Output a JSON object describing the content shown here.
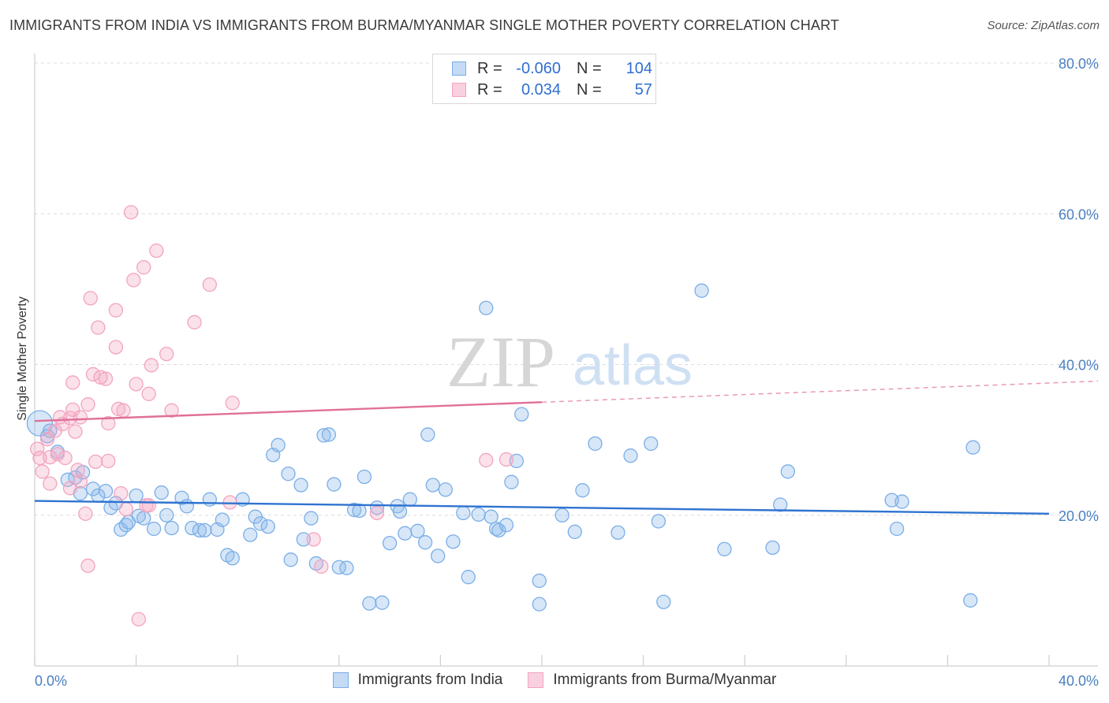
{
  "title": "IMMIGRANTS FROM INDIA VS IMMIGRANTS FROM BURMA/MYANMAR SINGLE MOTHER POVERTY CORRELATION CHART",
  "source": "Source: ZipAtlas.com",
  "watermark": {
    "zip": "ZIP",
    "atlas": "atlas"
  },
  "legend": {
    "rows": [
      {
        "r_label": "R =",
        "r_value": "-0.060",
        "n_label": "N =",
        "n_value": "104"
      },
      {
        "r_label": "R =",
        "r_value": "0.034",
        "n_label": "N =",
        "n_value": "57"
      }
    ]
  },
  "chart_data": {
    "type": "scatter",
    "title": "IMMIGRANTS FROM INDIA VS IMMIGRANTS FROM BURMA/MYANMAR SINGLE MOTHER POVERTY CORRELATION CHART",
    "xlabel": "",
    "ylabel": "Single Mother Poverty",
    "xlim": [
      0,
      40
    ],
    "ylim": [
      0,
      80
    ],
    "x_ticks": [
      "0.0%",
      "40.0%"
    ],
    "y_ticks": [
      "20.0%",
      "40.0%",
      "60.0%",
      "80.0%"
    ],
    "y_tick_values": [
      20,
      40,
      60,
      80
    ],
    "grid": true,
    "legend_position": "bottom",
    "series": [
      {
        "name": "Immigrants from India",
        "color": "#7aaee8",
        "line_color": "#2f73d0",
        "trend": {
          "x0": 0,
          "y0": 21.9,
          "x1": 40,
          "y1": 20.2
        },
        "points": [
          [
            0.2,
            32.2
          ],
          [
            0.5,
            30.5
          ],
          [
            0.6,
            31.2
          ],
          [
            0.9,
            28.4
          ],
          [
            1.3,
            24.7
          ],
          [
            1.6,
            25.0
          ],
          [
            1.9,
            25.7
          ],
          [
            1.8,
            22.9
          ],
          [
            2.3,
            23.5
          ],
          [
            2.5,
            22.6
          ],
          [
            2.8,
            23.2
          ],
          [
            3.0,
            21.0
          ],
          [
            3.2,
            21.6
          ],
          [
            3.4,
            18.1
          ],
          [
            3.6,
            18.7
          ],
          [
            3.7,
            19.1
          ],
          [
            4.0,
            22.6
          ],
          [
            4.1,
            19.9
          ],
          [
            4.3,
            19.6
          ],
          [
            4.7,
            18.2
          ],
          [
            5.0,
            23.0
          ],
          [
            5.2,
            20.0
          ],
          [
            5.4,
            18.3
          ],
          [
            5.8,
            22.3
          ],
          [
            6.0,
            21.2
          ],
          [
            6.2,
            18.3
          ],
          [
            6.5,
            18.0
          ],
          [
            6.7,
            18.0
          ],
          [
            6.9,
            22.1
          ],
          [
            7.2,
            18.1
          ],
          [
            7.4,
            19.4
          ],
          [
            7.6,
            14.7
          ],
          [
            7.8,
            14.3
          ],
          [
            8.2,
            22.1
          ],
          [
            8.5,
            17.4
          ],
          [
            8.7,
            19.8
          ],
          [
            8.9,
            18.9
          ],
          [
            9.2,
            18.5
          ],
          [
            9.4,
            28.0
          ],
          [
            9.6,
            29.3
          ],
          [
            10.0,
            25.5
          ],
          [
            10.1,
            14.1
          ],
          [
            10.5,
            24.0
          ],
          [
            10.6,
            16.8
          ],
          [
            10.9,
            19.6
          ],
          [
            11.1,
            13.6
          ],
          [
            11.4,
            30.6
          ],
          [
            11.6,
            30.7
          ],
          [
            11.8,
            24.1
          ],
          [
            12.0,
            13.1
          ],
          [
            12.3,
            13.0
          ],
          [
            12.6,
            20.7
          ],
          [
            12.8,
            20.6
          ],
          [
            13.0,
            25.1
          ],
          [
            13.2,
            8.3
          ],
          [
            13.5,
            21.0
          ],
          [
            13.7,
            8.4
          ],
          [
            14.0,
            16.3
          ],
          [
            14.3,
            21.2
          ],
          [
            14.4,
            20.5
          ],
          [
            14.6,
            17.6
          ],
          [
            14.8,
            22.1
          ],
          [
            15.1,
            17.9
          ],
          [
            15.4,
            16.4
          ],
          [
            15.5,
            30.7
          ],
          [
            15.7,
            24.0
          ],
          [
            15.9,
            14.6
          ],
          [
            16.2,
            23.4
          ],
          [
            16.5,
            16.5
          ],
          [
            16.9,
            20.3
          ],
          [
            17.1,
            11.8
          ],
          [
            17.5,
            20.1
          ],
          [
            17.8,
            47.5
          ],
          [
            18.0,
            19.8
          ],
          [
            18.2,
            18.2
          ],
          [
            18.3,
            18.0
          ],
          [
            18.6,
            18.7
          ],
          [
            18.8,
            24.4
          ],
          [
            19.0,
            27.2
          ],
          [
            19.2,
            33.4
          ],
          [
            19.9,
            11.3
          ],
          [
            19.9,
            8.2
          ],
          [
            20.8,
            20.0
          ],
          [
            21.3,
            17.8
          ],
          [
            21.6,
            23.3
          ],
          [
            22.1,
            29.5
          ],
          [
            23.0,
            17.7
          ],
          [
            23.5,
            27.9
          ],
          [
            24.3,
            29.5
          ],
          [
            24.6,
            19.2
          ],
          [
            24.8,
            8.5
          ],
          [
            26.3,
            49.8
          ],
          [
            27.2,
            15.5
          ],
          [
            29.1,
            15.7
          ],
          [
            29.4,
            21.4
          ],
          [
            29.7,
            25.8
          ],
          [
            33.8,
            22.0
          ],
          [
            34.0,
            18.2
          ],
          [
            34.2,
            21.8
          ],
          [
            36.9,
            8.7
          ],
          [
            37.0,
            29.0
          ]
        ]
      },
      {
        "name": "Immigrants from Burma/Myanmar",
        "color": "#f2a4bf",
        "line_color": "#e07098",
        "trend": {
          "x0": 0,
          "y0": 32.5,
          "x1": 20,
          "y1": 35.0,
          "dashed_to": {
            "x": 42,
            "y": 37.8
          }
        },
        "points": [
          [
            0.1,
            28.8
          ],
          [
            0.2,
            27.6
          ],
          [
            0.3,
            25.8
          ],
          [
            0.5,
            30.1
          ],
          [
            0.6,
            27.7
          ],
          [
            0.6,
            24.2
          ],
          [
            0.8,
            31.2
          ],
          [
            0.9,
            28.1
          ],
          [
            1.0,
            33.0
          ],
          [
            1.1,
            32.1
          ],
          [
            1.2,
            27.6
          ],
          [
            1.4,
            23.6
          ],
          [
            1.4,
            32.9
          ],
          [
            1.5,
            37.6
          ],
          [
            1.5,
            34.0
          ],
          [
            1.6,
            31.1
          ],
          [
            1.7,
            26.0
          ],
          [
            1.8,
            33.0
          ],
          [
            1.8,
            24.5
          ],
          [
            2.0,
            20.2
          ],
          [
            2.1,
            34.7
          ],
          [
            2.1,
            13.3
          ],
          [
            2.2,
            48.8
          ],
          [
            2.3,
            38.7
          ],
          [
            2.4,
            27.1
          ],
          [
            2.5,
            44.9
          ],
          [
            2.6,
            38.3
          ],
          [
            2.8,
            38.1
          ],
          [
            2.9,
            32.2
          ],
          [
            2.9,
            27.2
          ],
          [
            3.2,
            47.2
          ],
          [
            3.2,
            42.3
          ],
          [
            3.3,
            34.1
          ],
          [
            3.4,
            22.9
          ],
          [
            3.5,
            33.9
          ],
          [
            3.6,
            20.8
          ],
          [
            3.8,
            60.2
          ],
          [
            3.9,
            51.2
          ],
          [
            4.0,
            37.4
          ],
          [
            4.1,
            6.2
          ],
          [
            4.3,
            52.9
          ],
          [
            4.4,
            21.3
          ],
          [
            4.5,
            21.3
          ],
          [
            4.5,
            36.1
          ],
          [
            4.6,
            39.9
          ],
          [
            4.8,
            55.1
          ],
          [
            5.2,
            41.4
          ],
          [
            5.4,
            33.9
          ],
          [
            6.3,
            45.6
          ],
          [
            6.9,
            50.6
          ],
          [
            7.7,
            21.7
          ],
          [
            7.8,
            34.9
          ],
          [
            11.3,
            13.2
          ],
          [
            13.5,
            20.3
          ],
          [
            17.8,
            27.3
          ],
          [
            18.6,
            27.4
          ],
          [
            11.0,
            16.8
          ]
        ]
      }
    ]
  }
}
